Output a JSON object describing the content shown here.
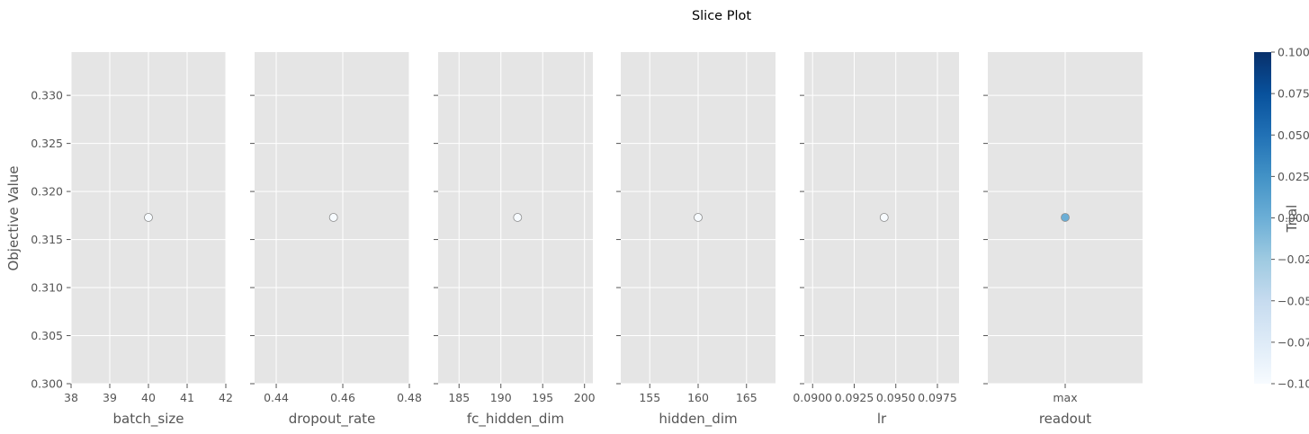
{
  "chart_data": {
    "type": "scatter",
    "title": "Slice Plot",
    "ylabel": "Objective Value",
    "ylim": [
      0.3,
      0.3345
    ],
    "yticks": [
      "0.300",
      "0.305",
      "0.310",
      "0.315",
      "0.320",
      "0.325",
      "0.330"
    ],
    "colors": {
      "panel_bg": "#e5e5e5",
      "grid": "#ffffff",
      "tick_text": "#555555",
      "point_fill_white": "#ffffff",
      "point_edge": "#8c8c8c",
      "point_fill_mid": "#6aaed6"
    },
    "panels": [
      {
        "xlabel": "batch_size",
        "xlim": [
          38,
          42
        ],
        "xtick_values": [
          38,
          39,
          40,
          41,
          42
        ],
        "xtick_labels": [
          "38",
          "39",
          "40",
          "41",
          "42"
        ],
        "x": 40,
        "y": 0.3173,
        "trial": -0.1
      },
      {
        "xlabel": "dropout_rate",
        "xlim": [
          0.4335,
          0.48
        ],
        "xtick_values": [
          0.44,
          0.46,
          0.48
        ],
        "xtick_labels": [
          "0.44",
          "0.46",
          "0.48"
        ],
        "x": 0.4572,
        "y": 0.3173,
        "trial": -0.1
      },
      {
        "xlabel": "fc_hidden_dim",
        "xlim": [
          182.5,
          201
        ],
        "xtick_values": [
          185,
          190,
          195,
          200
        ],
        "xtick_labels": [
          "185",
          "190",
          "195",
          "200"
        ],
        "x": 192,
        "y": 0.3173,
        "trial": -0.1
      },
      {
        "xlabel": "hidden_dim",
        "xlim": [
          152,
          168
        ],
        "xtick_values": [
          155,
          160,
          165
        ],
        "xtick_labels": [
          "155",
          "160",
          "165"
        ],
        "x": 160,
        "y": 0.3173,
        "trial": -0.1
      },
      {
        "xlabel": "lr",
        "xlim": [
          0.0895,
          0.0988
        ],
        "xtick_values": [
          0.09,
          0.0925,
          0.095,
          0.0975
        ],
        "xtick_labels": [
          "0.0900",
          "0.0925",
          "0.0950",
          "0.0975"
        ],
        "x": 0.0943,
        "y": 0.3173,
        "trial": -0.1
      },
      {
        "xlabel": "readout",
        "xlim": [
          0,
          1
        ],
        "xtick_values": [
          0.5
        ],
        "xtick_labels": [
          "max"
        ],
        "x": 0.5,
        "y": 0.3173,
        "trial": 0.0
      }
    ],
    "colorbar": {
      "label": "Trial",
      "min": -0.1,
      "max": 0.1,
      "ticks": [
        "0.100",
        "0.075",
        "0.050",
        "0.025",
        "0.000",
        "−0.025",
        "−0.050",
        "−0.075",
        "−0.100"
      ],
      "colormap": "Blues"
    }
  }
}
